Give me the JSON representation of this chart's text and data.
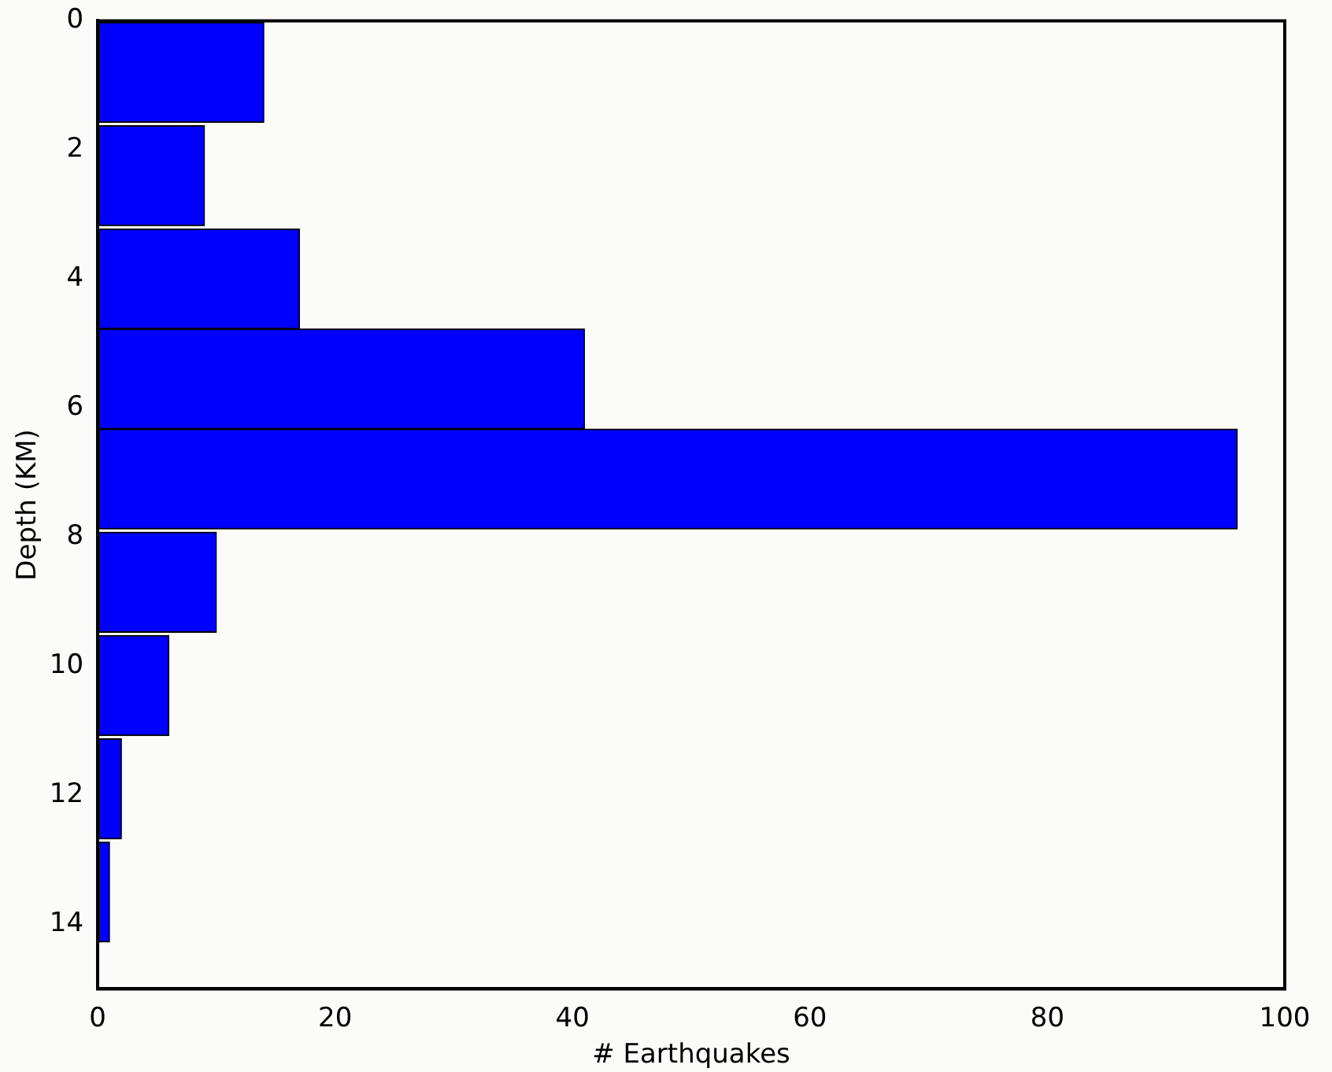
{
  "chart_data": {
    "type": "histogram",
    "orientation": "horizontal",
    "xlabel": "# Earthquakes",
    "ylabel": "Depth (KM)",
    "bins": [
      0,
      1.6,
      3.2,
      4.8,
      6.3,
      7.9,
      9.5,
      11.1,
      12.7,
      14.3
    ],
    "values": [
      14,
      9,
      17,
      41,
      96,
      10,
      6,
      2,
      1
    ],
    "color": "#0000ff",
    "xlim": [
      0,
      100
    ],
    "xticks": [
      0,
      20,
      40,
      60,
      80,
      100
    ],
    "ylim": [
      15,
      0
    ],
    "yticks": [
      0,
      2,
      4,
      6,
      8,
      10,
      12,
      14
    ],
    "grid": false,
    "legend": false
  }
}
